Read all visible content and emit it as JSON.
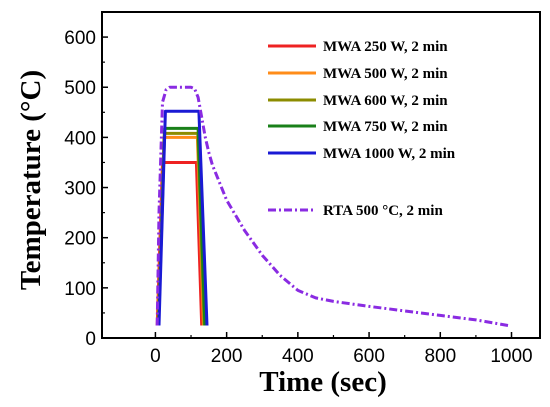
{
  "chart_data": {
    "type": "line",
    "xlabel": "Time (sec)",
    "ylabel": "Temperature (°C)",
    "xlim": [
      -150,
      1080
    ],
    "ylim": [
      0,
      650
    ],
    "xticks": [
      0,
      200,
      400,
      600,
      800,
      1000
    ],
    "yticks": [
      0,
      100,
      200,
      300,
      400,
      500,
      600
    ],
    "grid": false,
    "legend_position": "top-right",
    "series": [
      {
        "name": "MWA 250 W, 2 min",
        "color": "#ee2222",
        "style": "solid",
        "x": [
          5,
          20,
          115,
          130
        ],
        "y": [
          25,
          350,
          350,
          25
        ]
      },
      {
        "name": "MWA 500 W, 2 min",
        "color": "#ff8c1a",
        "style": "solid",
        "x": [
          7,
          24,
          118,
          135
        ],
        "y": [
          25,
          400,
          400,
          25
        ]
      },
      {
        "name": "MWA 600 W, 2 min",
        "color": "#8c8c00",
        "style": "solid",
        "x": [
          8,
          25,
          119,
          137
        ],
        "y": [
          25,
          408,
          408,
          25
        ]
      },
      {
        "name": "MWA 750 W, 2 min",
        "color": "#1a801a",
        "style": "solid",
        "x": [
          9,
          26,
          120,
          139
        ],
        "y": [
          25,
          418,
          418,
          25
        ]
      },
      {
        "name": "MWA 1000 W, 2 min",
        "color": "#1a1ad4",
        "style": "solid",
        "x": [
          10,
          28,
          122,
          145
        ],
        "y": [
          25,
          452,
          452,
          25
        ]
      },
      {
        "name": "RTA 500 °C, 2 min",
        "color": "#8a2be2",
        "style": "dashdot",
        "x": [
          5,
          10,
          20,
          30,
          40,
          50,
          60,
          70,
          80,
          90,
          100,
          110,
          120,
          130,
          140,
          150,
          160,
          180,
          200,
          250,
          300,
          350,
          400,
          450,
          500,
          600,
          700,
          800,
          900,
          950,
          990
        ],
        "y": [
          25,
          250,
          470,
          495,
          500,
          500,
          500,
          500,
          500,
          500,
          500,
          497,
          480,
          440,
          400,
          370,
          345,
          310,
          275,
          215,
          165,
          125,
          95,
          80,
          73,
          63,
          54,
          45,
          36,
          30,
          25
        ]
      }
    ]
  }
}
